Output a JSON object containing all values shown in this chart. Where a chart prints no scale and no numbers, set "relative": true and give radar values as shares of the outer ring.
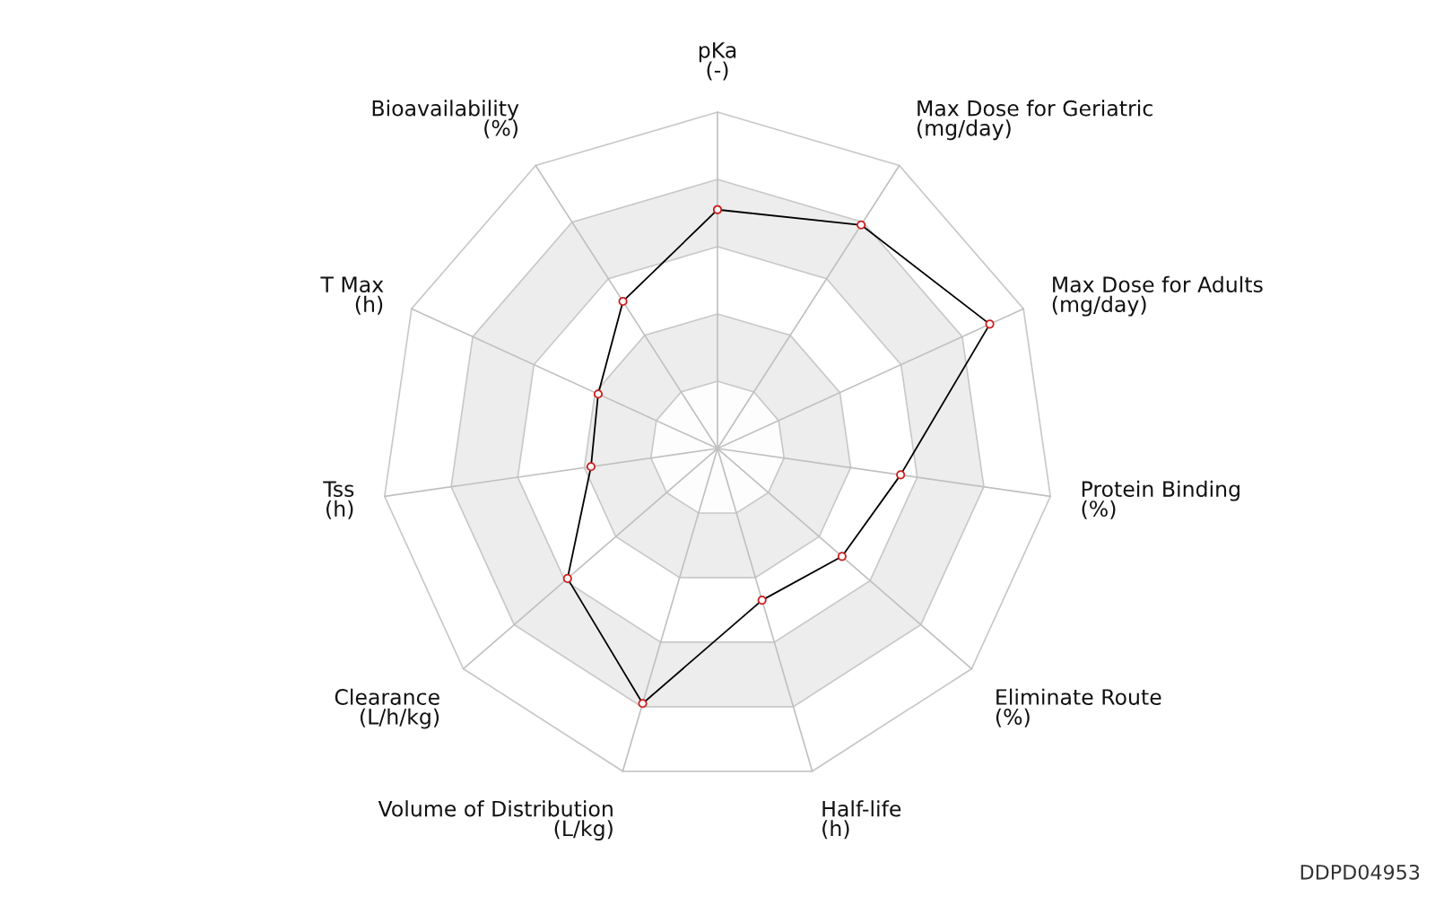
{
  "chart_data": {
    "type": "radar",
    "relative": true,
    "marker": "circle",
    "categories": [
      "pKa\n(-)",
      "Max Dose for Geriatric\n(mg/day)",
      "Max Dose for Adults\n(mg/day)",
      "Protein Binding\n(%)",
      "Eliminate Route\n(%)",
      "Half-life\n(h)",
      "Volume of Distribution\n(L/kg)",
      "Clearance\n(L/h/kg)",
      "Tss\n(h)",
      "T Max\n(h)",
      "Bioavailability\n(%)"
    ],
    "series": [
      {
        "color": "#000000",
        "values": [
          0.71,
          0.79,
          0.89,
          0.55,
          0.49,
          0.47,
          0.79,
          0.59,
          0.38,
          0.39,
          0.52
        ]
      }
    ],
    "annotations": [
      "DDPD04953"
    ]
  }
}
